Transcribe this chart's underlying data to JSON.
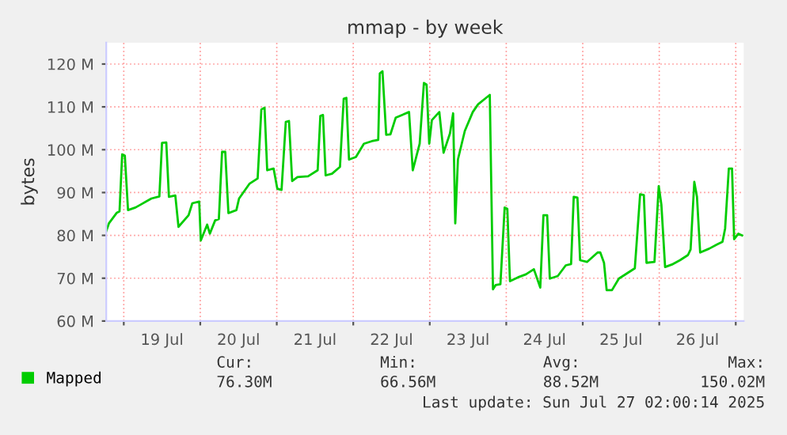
{
  "chart_data": {
    "type": "line",
    "title": "mmap - by week",
    "ylabel": "bytes",
    "x": [
      "2025-07-18T18:30",
      "2025-07-18T19:20",
      "2025-07-18T21:50",
      "2025-07-18T22:40",
      "2025-07-18T23:30",
      "2025-07-19T00:20",
      "2025-07-19T01:20",
      "2025-07-19T03:40",
      "2025-07-19T05:20",
      "2025-07-19T08:40",
      "2025-07-19T11:10",
      "2025-07-19T12:00",
      "2025-07-19T13:20",
      "2025-07-19T14:10",
      "2025-07-19T16:10",
      "2025-07-19T17:10",
      "2025-07-19T20:20",
      "2025-07-19T21:30",
      "2025-07-19T23:40",
      "2025-07-20T00:10",
      "2025-07-20T02:10",
      "2025-07-20T03:00",
      "2025-07-20T04:40",
      "2025-07-20T05:50",
      "2025-07-20T06:50",
      "2025-07-20T07:50",
      "2025-07-20T08:50",
      "2025-07-20T11:20",
      "2025-07-20T12:10",
      "2025-07-20T15:30",
      "2025-07-20T18:00",
      "2025-07-20T19:10",
      "2025-07-20T20:10",
      "2025-07-20T21:00",
      "2025-07-20T23:00",
      "2025-07-21T00:10",
      "2025-07-21T01:30",
      "2025-07-21T02:50",
      "2025-07-21T03:50",
      "2025-07-21T04:50",
      "2025-07-21T06:30",
      "2025-07-21T09:50",
      "2025-07-21T12:50",
      "2025-07-21T13:40",
      "2025-07-21T14:30",
      "2025-07-21T15:20",
      "2025-07-21T17:20",
      "2025-07-21T19:50",
      "2025-07-21T21:00",
      "2025-07-21T21:50",
      "2025-07-21T22:40",
      "2025-07-22T00:50",
      "2025-07-22T03:20",
      "2025-07-22T05:50",
      "2025-07-22T07:50",
      "2025-07-22T08:20",
      "2025-07-22T09:10",
      "2025-07-22T10:20",
      "2025-07-22T11:40",
      "2025-07-22T13:20",
      "2025-07-22T17:30",
      "2025-07-22T18:40",
      "2025-07-22T20:50",
      "2025-07-22T22:10",
      "2025-07-22T23:00",
      "2025-07-22T23:50",
      "2025-07-23T00:40",
      "2025-07-23T03:00",
      "2025-07-23T04:20",
      "2025-07-23T06:20",
      "2025-07-23T07:20",
      "2025-07-23T08:00",
      "2025-07-23T08:50",
      "2025-07-23T11:00",
      "2025-07-23T13:30",
      "2025-07-23T15:10",
      "2025-07-23T17:40",
      "2025-07-23T18:50",
      "2025-07-23T19:50",
      "2025-07-23T20:40",
      "2025-07-23T22:10",
      "2025-07-23T23:30",
      "2025-07-24T00:20",
      "2025-07-24T01:10",
      "2025-07-24T03:40",
      "2025-07-24T06:10",
      "2025-07-24T08:40",
      "2025-07-24T10:40",
      "2025-07-24T11:40",
      "2025-07-24T12:50",
      "2025-07-24T13:40",
      "2025-07-24T16:10",
      "2025-07-24T18:40",
      "2025-07-24T20:20",
      "2025-07-24T21:10",
      "2025-07-24T22:20",
      "2025-07-24T23:10",
      "2025-07-25T01:20",
      "2025-07-25T04:40",
      "2025-07-25T05:30",
      "2025-07-25T06:40",
      "2025-07-25T07:30",
      "2025-07-25T09:10",
      "2025-07-25T11:20",
      "2025-07-25T13:50",
      "2025-07-25T16:20",
      "2025-07-25T18:00",
      "2025-07-25T19:10",
      "2025-07-25T20:00",
      "2025-07-25T22:30",
      "2025-07-25T23:50",
      "2025-07-26T00:40",
      "2025-07-26T01:50",
      "2025-07-26T04:00",
      "2025-07-26T06:30",
      "2025-07-26T09:00",
      "2025-07-26T09:50",
      "2025-07-26T11:00",
      "2025-07-26T11:50",
      "2025-07-26T12:50",
      "2025-07-26T15:40",
      "2025-07-26T18:10",
      "2025-07-26T19:50",
      "2025-07-26T20:40",
      "2025-07-26T21:50",
      "2025-07-26T22:50",
      "2025-07-26T23:30",
      "2025-07-27T00:50",
      "2025-07-27T02:00"
    ],
    "series": [
      {
        "name": "Mapped",
        "color": "#00cc00",
        "values": [
          81,
          82.8,
          85.3,
          85.6,
          98.9,
          98.6,
          85.9,
          86.5,
          87.2,
          88.6,
          89.1,
          101.6,
          101.7,
          89,
          89.3,
          82,
          84.7,
          87.5,
          87.9,
          78.8,
          82.5,
          80.4,
          83.5,
          83.8,
          99.5,
          99.5,
          85.2,
          85.9,
          88.6,
          92.1,
          93.3,
          109.4,
          109.8,
          95.2,
          95.6,
          90.9,
          90.6,
          106.5,
          106.7,
          92.7,
          93.6,
          93.8,
          95.2,
          107.9,
          108.1,
          94,
          94.4,
          96,
          111.9,
          112.1,
          97.7,
          98.3,
          101.4,
          102,
          102.3,
          117.8,
          118.3,
          103.5,
          103.6,
          107.5,
          108.8,
          95.2,
          101.4,
          115.6,
          115.2,
          101.4,
          106.9,
          108.8,
          99.3,
          103.8,
          108.5,
          82.8,
          97.7,
          104.4,
          108.8,
          110.6,
          112.1,
          112.8,
          67.4,
          68.4,
          68.6,
          86.5,
          86.2,
          69.3,
          70.2,
          70.9,
          72.1,
          67.8,
          84.7,
          84.7,
          69.9,
          70.5,
          73,
          73.3,
          89,
          88.8,
          74.2,
          73.8,
          76,
          76,
          73.6,
          67.2,
          67.2,
          69.9,
          71.1,
          72.3,
          89.6,
          89.4,
          73.6,
          73.8,
          91.5,
          87.2,
          72.6,
          73.2,
          74.2,
          75.4,
          76.7,
          92.5,
          89,
          76,
          76.9,
          77.9,
          78.5,
          81.6,
          95.6,
          95.6,
          79.1,
          80.4,
          80
        ]
      }
    ],
    "xlim": [
      "2025-07-18T18:30",
      "2025-07-27T02:30"
    ],
    "xticks": [
      {
        "value": "2025-07-19T00:00",
        "label": null
      },
      {
        "value": "2025-07-19T12:00",
        "label": "19 Jul"
      },
      {
        "value": "2025-07-20T00:00",
        "label": null
      },
      {
        "value": "2025-07-20T12:00",
        "label": "20 Jul"
      },
      {
        "value": "2025-07-21T00:00",
        "label": null
      },
      {
        "value": "2025-07-21T12:00",
        "label": "21 Jul"
      },
      {
        "value": "2025-07-22T00:00",
        "label": null
      },
      {
        "value": "2025-07-22T12:00",
        "label": "22 Jul"
      },
      {
        "value": "2025-07-23T00:00",
        "label": null
      },
      {
        "value": "2025-07-23T12:00",
        "label": "23 Jul"
      },
      {
        "value": "2025-07-24T00:00",
        "label": null
      },
      {
        "value": "2025-07-24T12:00",
        "label": "24 Jul"
      },
      {
        "value": "2025-07-25T00:00",
        "label": null
      },
      {
        "value": "2025-07-25T12:00",
        "label": "25 Jul"
      },
      {
        "value": "2025-07-26T00:00",
        "label": null
      },
      {
        "value": "2025-07-26T12:00",
        "label": "26 Jul"
      },
      {
        "value": "2025-07-27T00:00",
        "label": null
      }
    ],
    "ylim": [
      60,
      125
    ],
    "yticks": [
      {
        "value": 60,
        "label": "60 M"
      },
      {
        "value": 70,
        "label": "70 M"
      },
      {
        "value": 80,
        "label": "80 M"
      },
      {
        "value": 90,
        "label": "90 M"
      },
      {
        "value": 100,
        "label": "100 M"
      },
      {
        "value": 110,
        "label": "110 M"
      },
      {
        "value": 120,
        "label": "120 M"
      }
    ],
    "grid": true,
    "legend": "bottom left",
    "line_style": "solid",
    "marker": "none",
    "annotations": [
      "Cur:",
      "76.30M",
      "Min:",
      "66.56M",
      "Avg:",
      "88.52M",
      "Max:",
      "150.02M",
      "Last update: Sun Jul 27 02:00:14 2025"
    ]
  }
}
